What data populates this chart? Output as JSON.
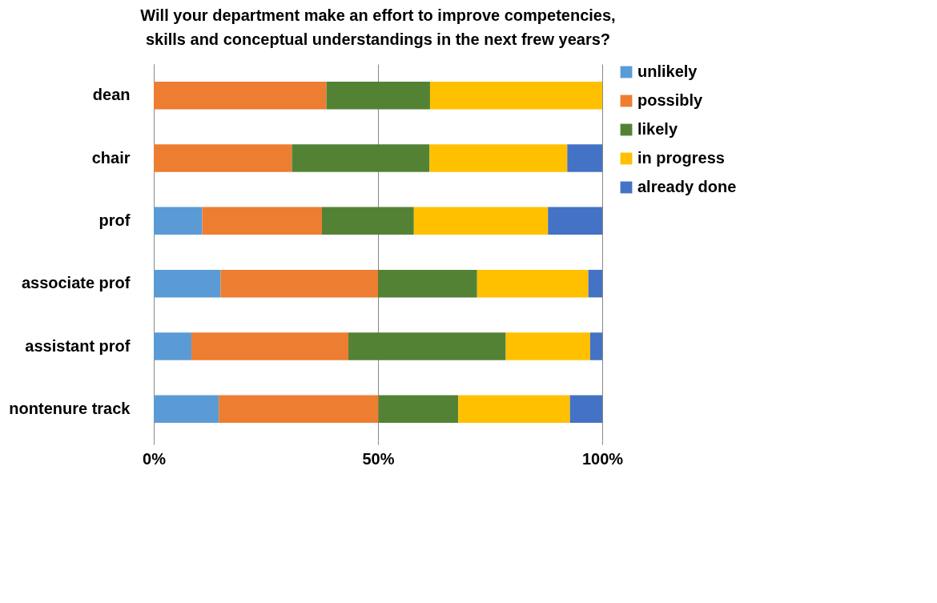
{
  "chart_data": {
    "type": "bar",
    "orientation": "horizontal",
    "stacked": true,
    "title": "Will your department make an effort to improve competencies, skills and conceptual understandings in the next frew years?",
    "categories": [
      "dean",
      "chair",
      "prof",
      "associate prof",
      "assistant prof",
      "nontenure track"
    ],
    "series": [
      {
        "name": "unlikely",
        "color": "#5b9bd5",
        "values": [
          0,
          0,
          0.108,
          0.149,
          0.084,
          0.145
        ]
      },
      {
        "name": "possibly",
        "color": "#ed7d31",
        "values": [
          0.385,
          0.308,
          0.267,
          0.351,
          0.35,
          0.356
        ]
      },
      {
        "name": "likely",
        "color": "#548235",
        "values": [
          0.231,
          0.307,
          0.205,
          0.221,
          0.351,
          0.178
        ]
      },
      {
        "name": "in progress",
        "color": "#ffc000",
        "values": [
          0.384,
          0.307,
          0.299,
          0.248,
          0.188,
          0.249
        ]
      },
      {
        "name": "already done",
        "color": "#4472c4",
        "values": [
          0,
          0.078,
          0.121,
          0.031,
          0.027,
          0.072
        ]
      }
    ],
    "xlim": [
      0,
      1
    ],
    "xticks": [
      {
        "value": 0,
        "label": "0%"
      },
      {
        "value": 0.5,
        "label": "50%"
      },
      {
        "value": 1,
        "label": "100%"
      }
    ],
    "grid": "x",
    "legend": "right"
  }
}
